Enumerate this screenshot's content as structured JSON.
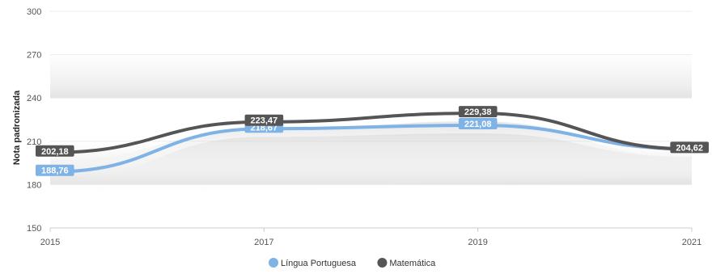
{
  "chart_data": {
    "type": "line",
    "title": "",
    "xlabel": "",
    "ylabel": "Nota padronizada",
    "x": [
      "2015",
      "2017",
      "2019",
      "2021"
    ],
    "y_ticks": [
      "300",
      "270",
      "240",
      "210",
      "180",
      "150"
    ],
    "ylim": [
      150,
      300
    ],
    "grid": true,
    "legend_position": "bottom-center",
    "series": [
      {
        "name": "Língua Portuguesa",
        "color": "#7fb2e5",
        "values": [
          188.76,
          218.67,
          221.08,
          204.62
        ],
        "labels": [
          "188,76",
          "218,67",
          "221,08",
          ""
        ]
      },
      {
        "name": "Matemática",
        "color": "#555555",
        "values": [
          202.18,
          223.47,
          229.38,
          204.62
        ],
        "labels": [
          "202,18",
          "223,47",
          "229,38",
          "204,62"
        ]
      }
    ]
  }
}
